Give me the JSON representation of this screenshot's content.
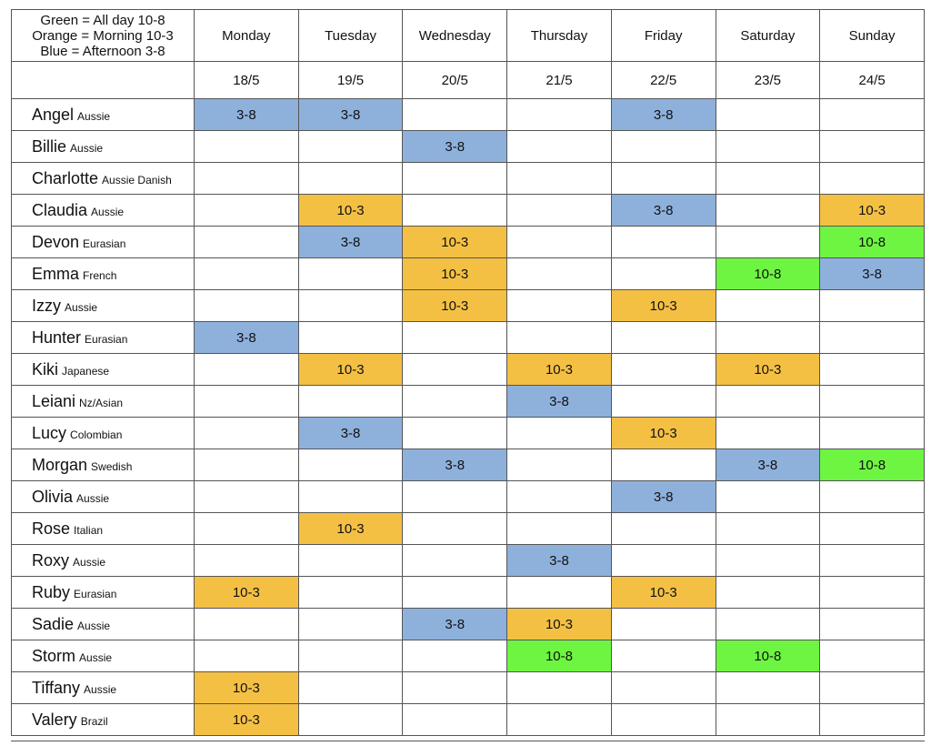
{
  "legend": [
    "Green = All day 10-8",
    "Orange = Morning 10-3",
    "Blue = Afternoon 3-8"
  ],
  "shift_colors": {
    "10-8": "#6ef542",
    "10-3": "#f4c044",
    "3-8": "#8eb1dc"
  },
  "days": [
    "Monday",
    "Tuesday",
    "Wednesday",
    "Thursday",
    "Friday",
    "Saturday",
    "Sunday"
  ],
  "dates": [
    "18/5",
    "19/5",
    "20/5",
    "21/5",
    "22/5",
    "23/5",
    "24/5"
  ],
  "rows": [
    {
      "name": "Angel",
      "origin": "Aussie",
      "shifts": [
        "3-8",
        "3-8",
        null,
        null,
        "3-8",
        null,
        null
      ]
    },
    {
      "name": "Billie",
      "origin": "Aussie",
      "shifts": [
        null,
        null,
        "3-8",
        null,
        null,
        null,
        null
      ]
    },
    {
      "name": "Charlotte",
      "origin": "Aussie Danish",
      "shifts": [
        null,
        null,
        null,
        null,
        null,
        null,
        null
      ]
    },
    {
      "name": "Claudia",
      "origin": "Aussie",
      "shifts": [
        null,
        "10-3",
        null,
        null,
        "3-8",
        null,
        "10-3"
      ]
    },
    {
      "name": "Devon",
      "origin": "Eurasian",
      "shifts": [
        null,
        "3-8",
        "10-3",
        null,
        null,
        null,
        "10-8"
      ]
    },
    {
      "name": "Emma",
      "origin": "French",
      "shifts": [
        null,
        null,
        "10-3",
        null,
        null,
        "10-8",
        "3-8"
      ]
    },
    {
      "name": "Izzy",
      "origin": "Aussie",
      "shifts": [
        null,
        null,
        "10-3",
        null,
        "10-3",
        null,
        null
      ]
    },
    {
      "name": "Hunter",
      "origin": "Eurasian",
      "shifts": [
        "3-8",
        null,
        null,
        null,
        null,
        null,
        null
      ]
    },
    {
      "name": "Kiki",
      "origin": "Japanese",
      "shifts": [
        null,
        "10-3",
        null,
        "10-3",
        null,
        "10-3",
        null
      ]
    },
    {
      "name": "Leiani",
      "origin": "Nz/Asian",
      "shifts": [
        null,
        null,
        null,
        "3-8",
        null,
        null,
        null
      ]
    },
    {
      "name": "Lucy",
      "origin": "Colombian",
      "shifts": [
        null,
        "3-8",
        null,
        null,
        "10-3",
        null,
        null
      ]
    },
    {
      "name": "Morgan",
      "origin": "Swedish",
      "shifts": [
        null,
        null,
        "3-8",
        null,
        null,
        "3-8",
        "10-8"
      ]
    },
    {
      "name": "Olivia",
      "origin": "Aussie",
      "shifts": [
        null,
        null,
        null,
        null,
        "3-8",
        null,
        null
      ]
    },
    {
      "name": "Rose",
      "origin": "Italian",
      "shifts": [
        null,
        "10-3",
        null,
        null,
        null,
        null,
        null
      ]
    },
    {
      "name": "Roxy",
      "origin": "Aussie",
      "shifts": [
        null,
        null,
        null,
        "3-8",
        null,
        null,
        null
      ]
    },
    {
      "name": "Ruby",
      "origin": "Eurasian",
      "shifts": [
        "10-3",
        null,
        null,
        null,
        "10-3",
        null,
        null
      ]
    },
    {
      "name": "Sadie",
      "origin": "Aussie",
      "shifts": [
        null,
        null,
        "3-8",
        "10-3",
        null,
        null,
        null
      ]
    },
    {
      "name": "Storm",
      "origin": "Aussie",
      "shifts": [
        null,
        null,
        null,
        "10-8",
        null,
        "10-8",
        null
      ]
    },
    {
      "name": "Tiffany",
      "origin": "Aussie",
      "shifts": [
        "10-3",
        null,
        null,
        null,
        null,
        null,
        null
      ]
    },
    {
      "name": "Valery",
      "origin": "Brazil",
      "shifts": [
        "10-3",
        null,
        null,
        null,
        null,
        null,
        null
      ]
    }
  ]
}
